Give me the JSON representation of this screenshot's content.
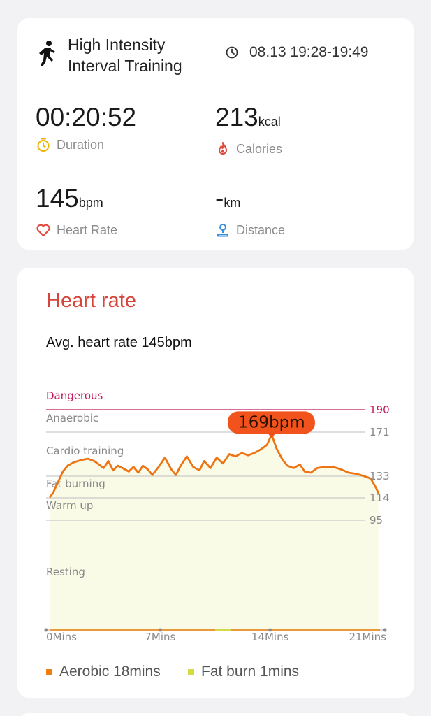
{
  "activity": {
    "title": "High Intensity Interval Training",
    "time_range": "08.13 19:28-19:49"
  },
  "stats": {
    "duration": {
      "value": "00:20:52",
      "label": "Duration"
    },
    "calories": {
      "value": "213",
      "unit": "kcal",
      "label": "Calories"
    },
    "heart_rate": {
      "value": "145",
      "unit": "bpm",
      "label": "Heart Rate"
    },
    "distance": {
      "value": "-",
      "unit": "km",
      "label": "Distance"
    }
  },
  "heart_rate": {
    "title": "Heart rate",
    "avg_text": "Avg. heart rate 145bpm",
    "peak_label": "169bpm",
    "zones": [
      {
        "name": "Dangerous",
        "threshold": "190"
      },
      {
        "name": "Anaerobic",
        "threshold": "171"
      },
      {
        "name": "Cardio training",
        "threshold": "133"
      },
      {
        "name": "Fat burning",
        "threshold": "114"
      },
      {
        "name": "Warm up",
        "threshold": "95"
      },
      {
        "name": "Resting",
        "threshold": ""
      }
    ],
    "x_ticks": [
      "0Mins",
      "7Mins",
      "14Mins",
      "21Mins"
    ],
    "legend": [
      {
        "label": "Aerobic 18mins",
        "color": "#f07c12"
      },
      {
        "label": "Fat burn 1mins",
        "color": "#d3dc45"
      }
    ]
  },
  "colors": {
    "accent_red": "#d6453a",
    "line_orange": "#ec7412",
    "danger_line": "#c2185b",
    "fill": "#fafbe6",
    "peak_bubble": "#f2521b",
    "calories_icon": "#e0463a",
    "distance_icon": "#3b8fd8",
    "duration_icon": "#f0b400"
  },
  "chart_data": {
    "type": "line",
    "title": "Heart rate",
    "xlabel": "",
    "ylabel": "",
    "x_ticks": [
      "0Mins",
      "7Mins",
      "14Mins",
      "21Mins"
    ],
    "xlim": [
      0,
      21
    ],
    "y_ticks": [
      95,
      114,
      133,
      171,
      190
    ],
    "series": [
      {
        "x": [
          0,
          0.2,
          0.5,
          0.8,
          1.1,
          1.5,
          2.0,
          2.4,
          2.8,
          3.1,
          3.4,
          3.7,
          4.0,
          4.3,
          4.6,
          5.0,
          5.3,
          5.6,
          5.9,
          6.2,
          6.5,
          6.9,
          7.3,
          7.7,
          8.0,
          8.3,
          8.7,
          9.1,
          9.5,
          9.8,
          10.2,
          10.6,
          11.0,
          11.4,
          11.8,
          12.2,
          12.6,
          13.0,
          13.4,
          13.8,
          14.1,
          14.4,
          14.8,
          15.1,
          15.5,
          15.9,
          16.2,
          16.6,
          17.0,
          17.5,
          18.0,
          18.5,
          19.0,
          19.5,
          20.0,
          20.4,
          20.7,
          20.9
        ],
        "y": [
          115,
          119,
          128,
          137,
          142,
          145,
          147,
          148,
          146,
          143,
          140,
          146,
          138,
          142,
          140,
          137,
          141,
          136,
          142,
          139,
          134,
          141,
          149,
          139,
          134,
          142,
          150,
          141,
          138,
          146,
          140,
          149,
          144,
          152,
          150,
          153,
          151,
          153,
          156,
          160,
          169,
          157,
          147,
          142,
          140,
          143,
          137,
          136,
          140,
          141,
          141,
          139,
          136,
          135,
          133,
          131,
          124,
          118
        ]
      }
    ],
    "peak": {
      "x": 14.1,
      "y": 169,
      "label": "169bpm"
    },
    "zones": [
      "Dangerous",
      "Anaerobic",
      "Cardio training",
      "Fat burning",
      "Warm up",
      "Resting"
    ],
    "legend": [
      "Aerobic 18mins",
      "Fat burn 1mins"
    ]
  }
}
